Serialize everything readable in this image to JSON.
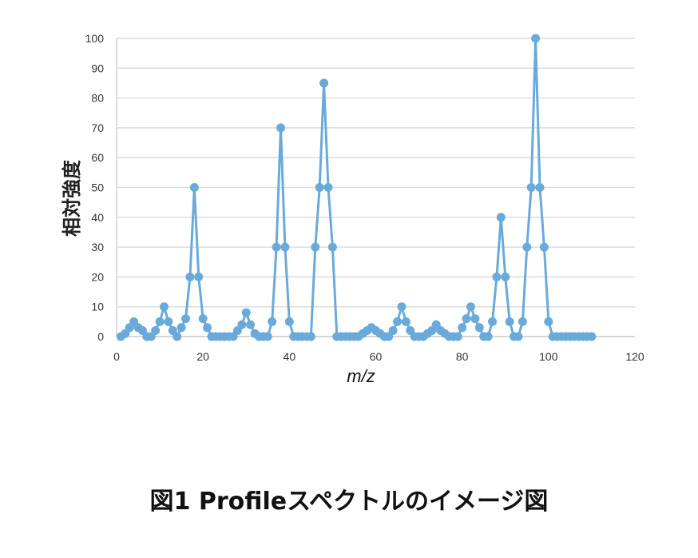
{
  "chart_data": {
    "type": "line",
    "title": "",
    "xlabel": "m/z",
    "ylabel": "相対強度",
    "xlim": [
      0,
      120
    ],
    "ylim": [
      0,
      100
    ],
    "xticks": [
      0,
      20,
      40,
      60,
      80,
      100,
      120
    ],
    "yticks": [
      0,
      10,
      20,
      30,
      40,
      50,
      60,
      70,
      80,
      90,
      100
    ],
    "grid": "horizontal",
    "legend": "none",
    "series_color": "#6aaadb",
    "x": [
      1,
      2,
      3,
      4,
      5,
      6,
      7,
      8,
      9,
      10,
      11,
      12,
      13,
      14,
      15,
      16,
      17,
      18,
      19,
      20,
      21,
      22,
      23,
      24,
      25,
      26,
      27,
      28,
      29,
      30,
      31,
      32,
      33,
      34,
      35,
      36,
      37,
      38,
      39,
      40,
      41,
      42,
      43,
      44,
      45,
      46,
      47,
      48,
      49,
      50,
      51,
      52,
      53,
      54,
      55,
      56,
      57,
      58,
      59,
      60,
      61,
      62,
      63,
      64,
      65,
      66,
      67,
      68,
      69,
      70,
      71,
      72,
      73,
      74,
      75,
      76,
      77,
      78,
      79,
      80,
      81,
      82,
      83,
      84,
      85,
      86,
      87,
      88,
      89,
      90,
      91,
      92,
      93,
      94,
      95,
      96,
      97,
      98,
      99,
      100,
      101,
      102,
      103,
      104,
      105,
      106,
      107,
      108,
      109,
      110
    ],
    "y": [
      0,
      1,
      3,
      5,
      3,
      2,
      0,
      0,
      2,
      5,
      10,
      5,
      2,
      0,
      3,
      6,
      20,
      50,
      20,
      6,
      3,
      0,
      0,
      0,
      0,
      0,
      0,
      2,
      4,
      8,
      4,
      1,
      0,
      0,
      0,
      5,
      30,
      70,
      30,
      5,
      0,
      0,
      0,
      0,
      0,
      30,
      50,
      85,
      50,
      30,
      0,
      0,
      0,
      0,
      0,
      0,
      1,
      2,
      3,
      2,
      1,
      0,
      0,
      2,
      5,
      10,
      5,
      2,
      0,
      0,
      0,
      1,
      2,
      4,
      2,
      1,
      0,
      0,
      0,
      3,
      6,
      10,
      6,
      3,
      0,
      0,
      5,
      20,
      40,
      20,
      5,
      0,
      0,
      5,
      30,
      50,
      100,
      50,
      30,
      5,
      0,
      0,
      0,
      0,
      0,
      0,
      0,
      0,
      0,
      0
    ]
  },
  "caption": "図1  Profileスペクトルのイメージ図"
}
